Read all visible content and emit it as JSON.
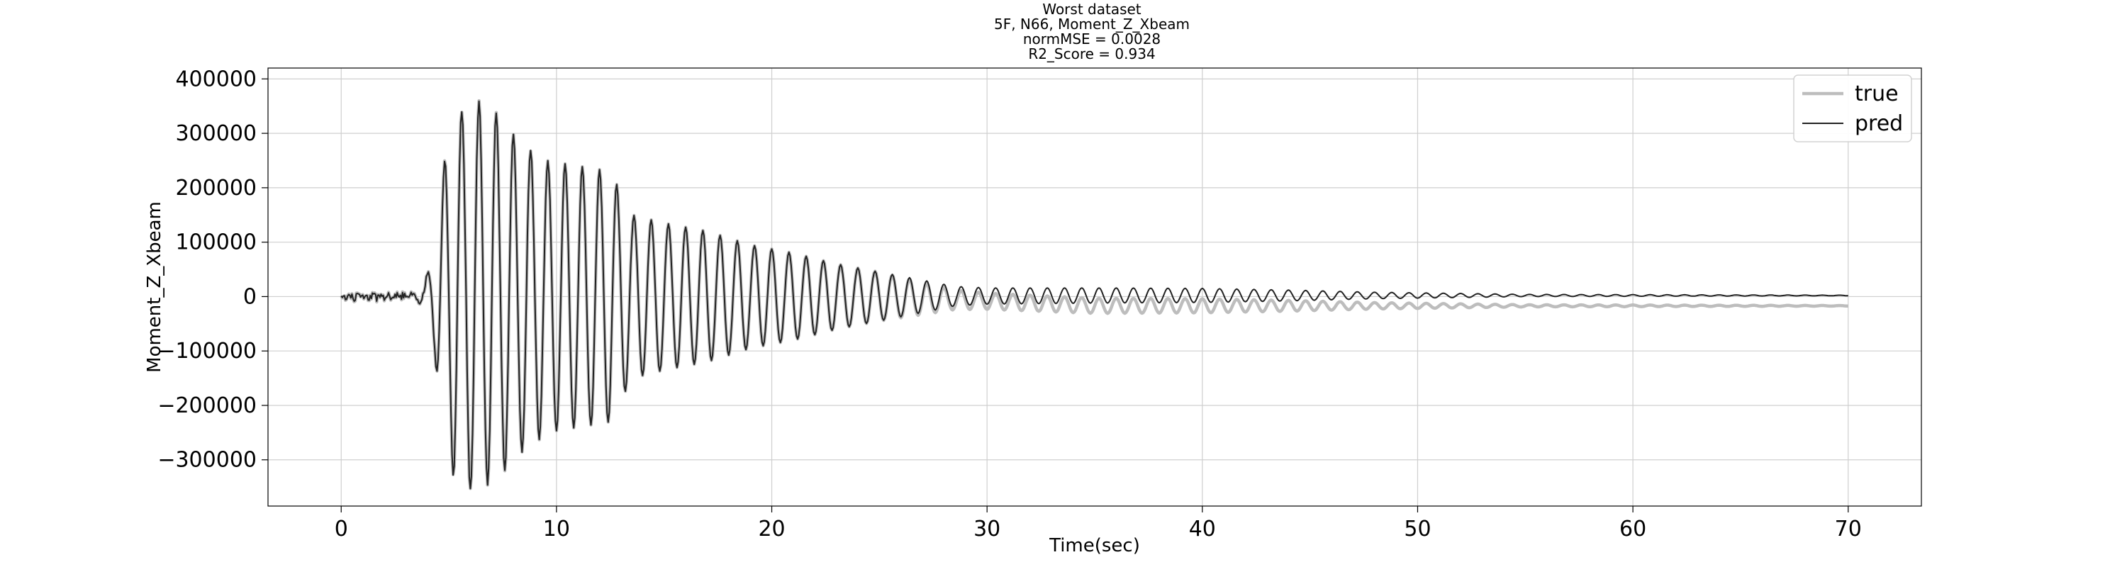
{
  "chart_data": {
    "type": "line",
    "title_lines": [
      "Worst dataset",
      "5F, N66, Moment_Z_Xbeam",
      "normMSE = 0.0028",
      "R2_Score = 0.934"
    ],
    "xlabel": "Time(sec)",
    "ylabel": "Moment_Z_Xbeam",
    "xlim": [
      -3.4,
      73.4
    ],
    "ylim": [
      -385000,
      420000
    ],
    "xticks": [
      0,
      10,
      20,
      30,
      40,
      50,
      60,
      70
    ],
    "yticks": [
      -300000,
      -200000,
      -100000,
      0,
      100000,
      200000,
      300000,
      400000
    ],
    "xtick_labels": [
      "0",
      "10",
      "20",
      "30",
      "40",
      "50",
      "60",
      "70"
    ],
    "ytick_labels": [
      "−300000",
      "−200000",
      "−100000",
      "0",
      "100000",
      "200000",
      "300000",
      "400000"
    ],
    "grid": true,
    "legend_position": "top-right",
    "series": [
      {
        "name": "true",
        "color": "#bdbdbd",
        "style": "thick"
      },
      {
        "name": "pred",
        "color": "#222222",
        "style": "thin"
      }
    ],
    "x_range": [
      0,
      70
    ],
    "sample_dt": 0.05,
    "true_final_offset": -17000,
    "pred_final_offset": 2000,
    "envelope": [
      [
        0,
        0
      ],
      [
        3,
        3000
      ],
      [
        3.6,
        8000
      ],
      [
        4.2,
        60000
      ],
      [
        4.6,
        200000
      ],
      [
        5.2,
        330000
      ],
      [
        6.2,
        360000
      ],
      [
        7,
        340000
      ],
      [
        8,
        300000
      ],
      [
        9.5,
        250000
      ],
      [
        11,
        240000
      ],
      [
        12.5,
        230000
      ],
      [
        13.5,
        150000
      ],
      [
        15,
        135000
      ],
      [
        17,
        120000
      ],
      [
        19,
        95000
      ],
      [
        21,
        80000
      ],
      [
        23,
        60000
      ],
      [
        25,
        45000
      ],
      [
        27,
        30000
      ],
      [
        28.5,
        18000
      ],
      [
        30,
        15000
      ],
      [
        35,
        14000
      ],
      [
        40,
        13000
      ],
      [
        44,
        10000
      ],
      [
        48,
        6000
      ],
      [
        55,
        2000
      ],
      [
        70,
        500
      ]
    ],
    "oscillation_period_sec": 0.8
  }
}
